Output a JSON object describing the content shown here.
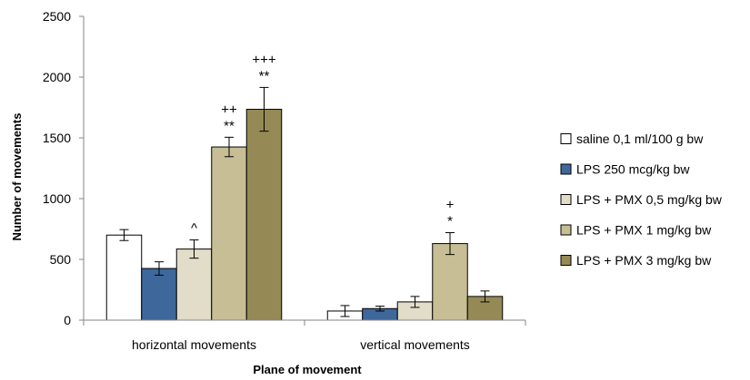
{
  "chart_data": {
    "type": "bar",
    "title": "",
    "xlabel": "Plane of movement",
    "ylabel": "Number of movements",
    "ylim": [
      0,
      2500
    ],
    "yticks": [
      0,
      500,
      1000,
      1500,
      2000,
      2500
    ],
    "grid": false,
    "legend_position": "right",
    "categories": [
      "horizontal movements",
      "vertical movements"
    ],
    "series": [
      {
        "name": "saline 0,1 ml/100 g bw",
        "color": "#ffffff",
        "values": [
          700,
          75
        ],
        "errors": [
          45,
          45
        ],
        "annotations": [
          "",
          ""
        ]
      },
      {
        "name": "LPS 250 mcg/kg bw",
        "color": "#3e689c",
        "values": [
          425,
          95
        ],
        "errors": [
          55,
          20
        ],
        "annotations": [
          "",
          ""
        ]
      },
      {
        "name": "LPS + PMX 0,5 mg/kg bw",
        "color": "#e2ddc8",
        "values": [
          585,
          150
        ],
        "errors": [
          75,
          45
        ],
        "annotations": [
          "^",
          ""
        ]
      },
      {
        "name": "LPS + PMX 1 mg/kg bw",
        "color": "#c7be95",
        "values": [
          1425,
          630
        ],
        "errors": [
          80,
          90
        ],
        "annotations": [
          "++\n**",
          "+\n*"
        ]
      },
      {
        "name": "LPS + PMX 3 mg/kg bw",
        "color": "#958a55",
        "values": [
          1735,
          195
        ],
        "errors": [
          180,
          45
        ],
        "annotations": [
          "+++\n**",
          ""
        ]
      }
    ]
  }
}
